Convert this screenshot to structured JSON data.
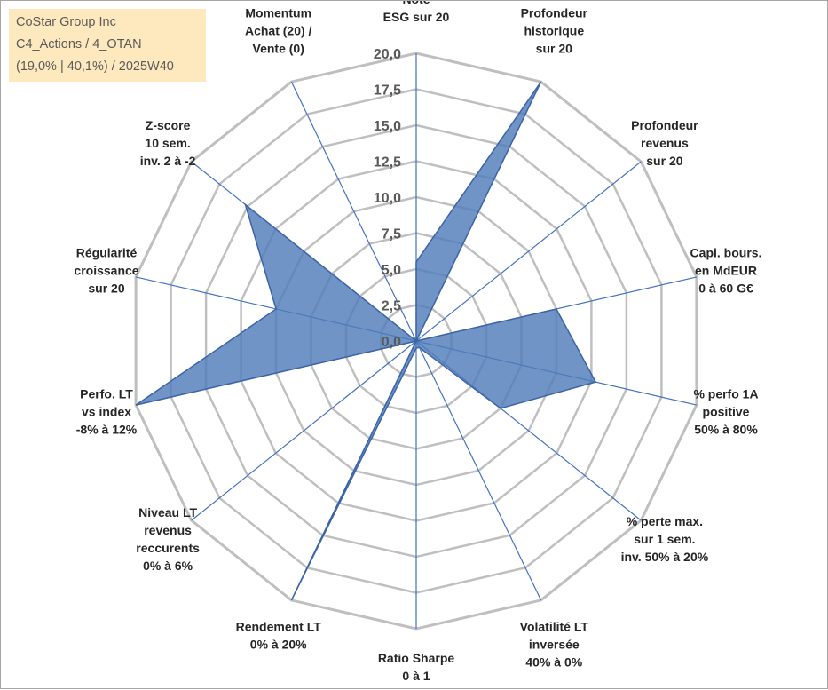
{
  "title": {
    "company": "CoStar Group Inc",
    "category": "C4_Actions / 4_OTAN",
    "details": "(19,0% | 40,1%) / 2025W40"
  },
  "chart_data": {
    "type": "radar",
    "title": "CoStar Group Inc",
    "scale": {
      "min": 0,
      "max": 20,
      "step": 2.5
    },
    "tick_labels": [
      "0,0",
      "2,5",
      "5,0",
      "7,5",
      "10,0",
      "12,5",
      "15,0",
      "17,5",
      "20,0"
    ],
    "axes": [
      {
        "label": [
          "Note",
          "ESG sur 20"
        ],
        "value": 5.5
      },
      {
        "label": [
          "Profondeur",
          "historique",
          "sur 20"
        ],
        "value": 20
      },
      {
        "label": [
          "Profondeur",
          "revenus",
          "sur 20"
        ],
        "value": 0
      },
      {
        "label": [
          "Capi. bours.",
          "en MdEUR",
          "0 à 60 G€"
        ],
        "value": 10
      },
      {
        "label": [
          "% perfo 1A",
          "positive",
          "50% à 80%"
        ],
        "value": 12.8
      },
      {
        "label": [
          "% perte max.",
          "sur 1 sem.",
          "inv. 50% à 20%"
        ],
        "value": 7.5
      },
      {
        "label": [
          "Volatilité LT",
          "inversée",
          "40% à 0%"
        ],
        "value": 0.5
      },
      {
        "label": [
          "Ratio Sharpe",
          "0 à 1"
        ],
        "value": 0.5
      },
      {
        "label": [
          "Rendement LT",
          "0% à 20%"
        ],
        "value": 20
      },
      {
        "label": [
          "Niveau LT",
          "revenus",
          "reccurents",
          "0% à 6%"
        ],
        "value": 0
      },
      {
        "label": [
          "Perfo. LT",
          "vs index",
          "-8% à 12%"
        ],
        "value": 20
      },
      {
        "label": [
          "Régularité",
          "croissance",
          "sur 20"
        ],
        "value": 10
      },
      {
        "label": [
          "Z-score",
          "10 sem.",
          "inv. 2 à -2"
        ],
        "value": 15.2
      },
      {
        "label": [
          "Momentum",
          "Achat (20) /",
          "Vente (0)"
        ],
        "value": 0
      }
    ],
    "series": [
      {
        "name": "CoStar Group Inc",
        "color": "#4f7db8"
      }
    ],
    "colors": {
      "grid": "#bfbfbf",
      "spoke": "#4472c4",
      "fill": "#4f7db8",
      "stroke": "#3c64a8"
    }
  }
}
